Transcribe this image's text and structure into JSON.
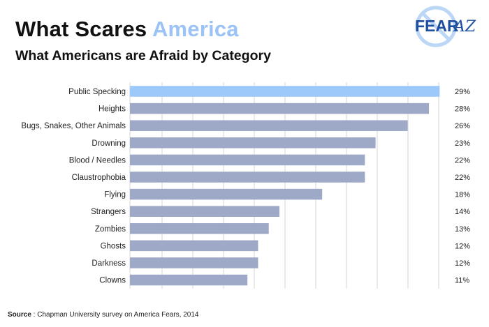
{
  "header": {
    "title_main": "What Scares ",
    "title_highlight": "America",
    "subtitle": "What Americans are Afraid by Category"
  },
  "logo": {
    "text_main": "FEAR",
    "text_script": "AZ"
  },
  "footer": {
    "source_label": "Source",
    "source_text": " : Chapman University survey on America Fears, 2014"
  },
  "colors": {
    "bar": "#9ea9c7",
    "highlight_bar": "#9cc8fa",
    "grid": "#d6d6d6",
    "title_highlight": "#9cc3f5",
    "logo_blue": "#1c4d9e"
  },
  "chart_data": {
    "type": "bar",
    "orientation": "horizontal",
    "title": "What Americans are Afraid by Category",
    "categories": [
      "Public Specking",
      "Heights",
      "Bugs, Snakes, Other Animals",
      "Drowning",
      "Blood / Needles",
      "Claustrophobia",
      "Flying",
      "Strangers",
      "Zombies",
      "Ghosts",
      "Darkness",
      "Clowns"
    ],
    "values": [
      29,
      28,
      26,
      23,
      22,
      22,
      18,
      14,
      13,
      12,
      12,
      11
    ],
    "value_labels": [
      "29%",
      "28%",
      "26%",
      "23%",
      "22%",
      "22%",
      "18%",
      "14%",
      "13%",
      "12%",
      "12%",
      "11%"
    ],
    "highlight_index": 0,
    "xlim": [
      0,
      29.5
    ],
    "grid": true,
    "legend": "none"
  }
}
